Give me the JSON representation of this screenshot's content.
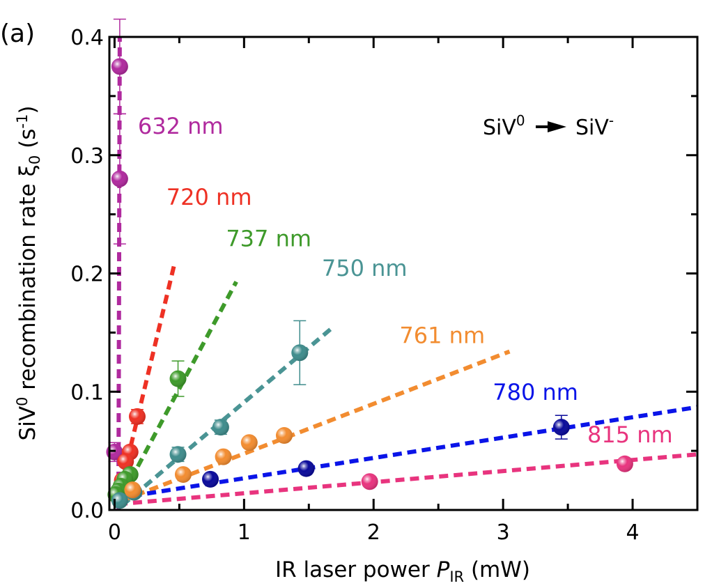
{
  "chart_data": {
    "type": "scatter",
    "panel_label": "(a)",
    "title": "",
    "xlabel": "IR laser power P_IR (mW)",
    "xlabel_parts": {
      "main": "IR laser power ",
      "italic": "P",
      "sub": "IR",
      "unit": " (mW)"
    },
    "ylabel": "SiV0 recombination rate ξ0 (s-1)",
    "ylabel_parts": {
      "pre": "SiV",
      "sup0": "0",
      "mid": " recombination rate ξ",
      "sub0": "0",
      "unit_pre": " (s",
      "unit_sup": "-1",
      "unit_post": ")"
    },
    "xlim": [
      -0.04,
      4.5
    ],
    "ylim": [
      0.0,
      0.4
    ],
    "xticks": [
      0,
      1,
      2,
      3,
      4
    ],
    "xtick_labels": [
      "0",
      "1",
      "2",
      "3",
      "4"
    ],
    "xminor": [
      0.5,
      1.5,
      2.5,
      3.5
    ],
    "yticks": [
      0.0,
      0.1,
      0.2,
      0.3,
      0.4
    ],
    "ytick_labels": [
      "0.0",
      "0.1",
      "0.2",
      "0.3",
      "0.4"
    ],
    "yminor": [
      0.05,
      0.15,
      0.25,
      0.35
    ],
    "grid": false,
    "annotation": {
      "from": "SiV",
      "from_sup": "0",
      "to": "SiV",
      "to_sup": "-"
    },
    "series": [
      {
        "name": "632 nm",
        "color": "#B02A9E",
        "point_color": "#B02A9E",
        "points": [
          [
            0.04,
            0.375,
            0.04
          ],
          [
            0.04,
            0.28,
            0.055
          ],
          [
            0.0,
            0.049,
            0.008
          ]
        ],
        "fit": [
          [
            0.03,
            0.0
          ],
          [
            0.04,
            0.4
          ]
        ],
        "label_at": [
          0.18,
          0.318
        ]
      },
      {
        "name": "720 nm",
        "color": "#EE3124",
        "point_color": "#EE3124",
        "points": [
          [
            0.175,
            0.079,
            0.006
          ],
          [
            0.12,
            0.049,
            0.004
          ],
          [
            0.085,
            0.041,
            0.003
          ],
          [
            0.06,
            0.025,
            0.002
          ],
          [
            0.03,
            0.015,
            0.002
          ]
        ],
        "fit": [
          [
            0.02,
            0.006
          ],
          [
            0.46,
            0.207
          ]
        ],
        "label_at": [
          0.4,
          0.258
        ]
      },
      {
        "name": "737 nm",
        "color": "#3E9A2A",
        "point_color": "#3E9A2A",
        "points": [
          [
            0.49,
            0.111,
            0.015
          ],
          [
            0.12,
            0.03,
            0.003
          ],
          [
            0.08,
            0.026,
            0.002
          ],
          [
            0.05,
            0.02,
            0.002
          ],
          [
            0.03,
            0.016,
            0.002
          ],
          [
            0.01,
            0.013,
            0.002
          ]
        ],
        "fit": [
          [
            0.02,
            0.004
          ],
          [
            0.94,
            0.193
          ]
        ],
        "label_at": [
          0.86,
          0.223
        ]
      },
      {
        "name": "750 nm",
        "color": "#4A9494",
        "point_color": "#3F8C8C",
        "points": [
          [
            1.43,
            0.133,
            0.027
          ],
          [
            0.82,
            0.07,
            0.006
          ],
          [
            0.49,
            0.047,
            0.006
          ],
          [
            0.15,
            0.015,
            0.003
          ],
          [
            0.04,
            0.008,
            0.002
          ]
        ],
        "fit": [
          [
            0.06,
            0.004
          ],
          [
            1.68,
            0.154
          ]
        ],
        "label_at": [
          1.6,
          0.198
        ]
      },
      {
        "name": "761 nm",
        "color": "#F28C30",
        "point_color": "#F28C30",
        "points": [
          [
            1.31,
            0.063,
            0.003
          ],
          [
            1.04,
            0.057,
            0.003
          ],
          [
            0.84,
            0.045,
            0.003
          ],
          [
            0.53,
            0.03,
            0.002
          ],
          [
            0.14,
            0.017,
            0.002
          ]
        ],
        "fit": [
          [
            0.06,
            0.008
          ],
          [
            3.05,
            0.134
          ]
        ],
        "label_at": [
          2.2,
          0.141
        ]
      },
      {
        "name": "780 nm",
        "color": "#0A14E8",
        "point_color": "#0A0A9A",
        "points": [
          [
            3.45,
            0.07,
            0.01
          ],
          [
            1.48,
            0.035,
            0.002
          ],
          [
            0.74,
            0.026,
            0.002
          ]
        ],
        "fit": [
          [
            0.14,
            0.012
          ],
          [
            4.5,
            0.087
          ]
        ],
        "label_at": [
          2.92,
          0.093
        ]
      },
      {
        "name": "815 nm",
        "color": "#E8347E",
        "point_color": "#E8347E",
        "points": [
          [
            3.94,
            0.039,
            0.002
          ],
          [
            1.97,
            0.024,
            0.002
          ]
        ],
        "fit": [
          [
            0.03,
            0.005
          ],
          [
            4.5,
            0.047
          ]
        ],
        "label_at": [
          3.65,
          0.057
        ]
      }
    ]
  }
}
